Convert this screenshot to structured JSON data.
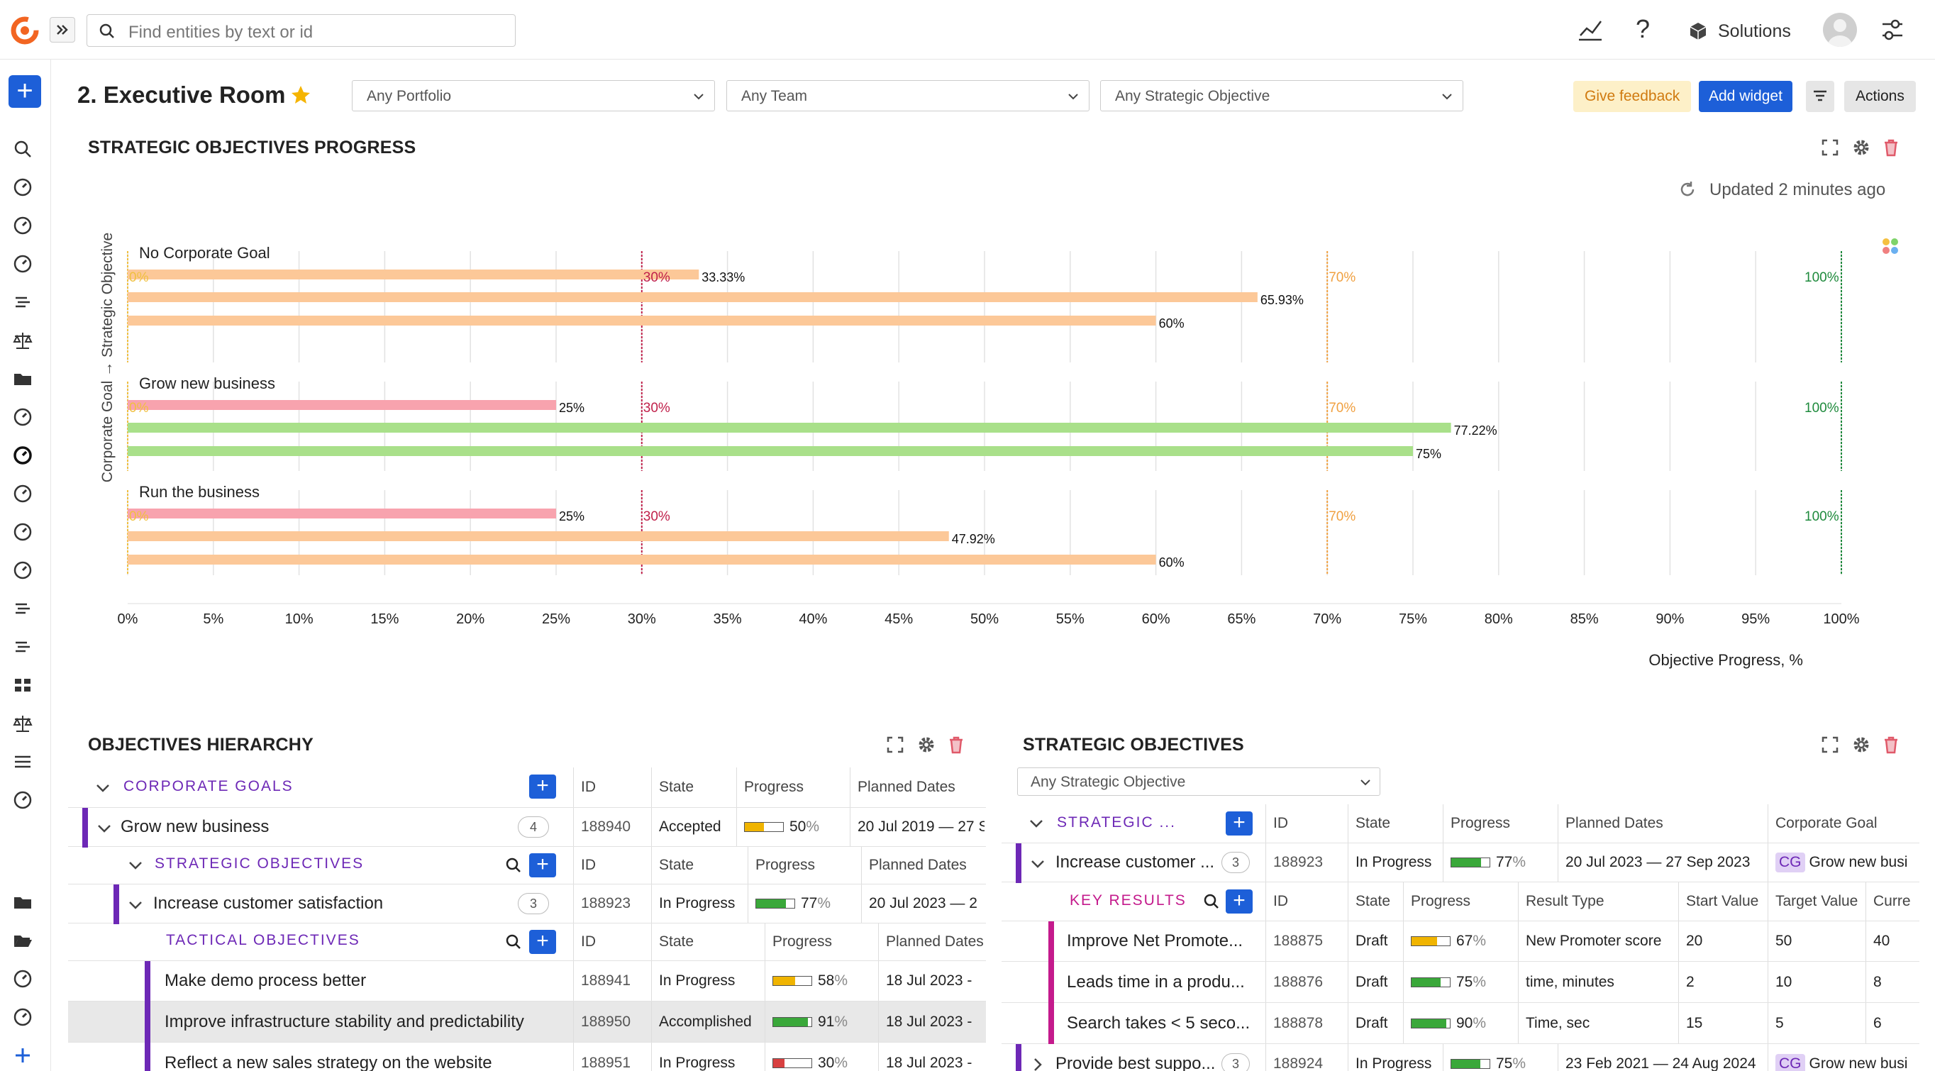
{
  "topbar": {
    "search_placeholder": "Find entities by text or id",
    "solutions_label": "Solutions"
  },
  "header": {
    "title": "2. Executive Room",
    "filters": [
      "Any Portfolio",
      "Any Team",
      "Any Strategic Objective"
    ],
    "feedback_label": "Give feedback",
    "add_widget_label": "Add widget",
    "actions_label": "Actions"
  },
  "progress_widget": {
    "title": "STRATEGIC OBJECTIVES PROGRESS",
    "updated": "Updated 2 minutes ago"
  },
  "chart_data": {
    "type": "bar",
    "orientation": "horizontal",
    "xlabel": "Objective Progress, %",
    "ylabel": "Corporate Goal → Strategic Objective",
    "xlim": [
      0,
      100
    ],
    "xticks": [
      "0%",
      "5%",
      "10%",
      "15%",
      "20%",
      "25%",
      "30%",
      "35%",
      "40%",
      "45%",
      "50%",
      "55%",
      "60%",
      "65%",
      "70%",
      "75%",
      "80%",
      "85%",
      "90%",
      "95%",
      "100%"
    ],
    "thresholds": [
      {
        "value": 0,
        "label": "0%",
        "color": "#f0c040"
      },
      {
        "value": 30,
        "label": "30%",
        "color": "#c0204a"
      },
      {
        "value": 70,
        "label": "70%",
        "color": "#f0a040"
      },
      {
        "value": 100,
        "label": "100%",
        "color": "#1e8a3c"
      }
    ],
    "groups": [
      {
        "name": "No Corporate Goal",
        "values": [
          33.33,
          65.93,
          60
        ],
        "labels": [
          "33.33%",
          "65.93%",
          "60%"
        ],
        "colors": [
          "#fcc898",
          "#fcc898",
          "#fcc898"
        ]
      },
      {
        "name": "Grow new business",
        "values": [
          25,
          77.22,
          75
        ],
        "labels": [
          "25%",
          "77.22%",
          "75%"
        ],
        "colors": [
          "#f8a3ae",
          "#a9e08a",
          "#a9e08a"
        ]
      },
      {
        "name": "Run the business",
        "values": [
          25,
          47.92,
          60
        ],
        "labels": [
          "25%",
          "47.92%",
          "60%"
        ],
        "colors": [
          "#f8a3ae",
          "#fcc898",
          "#fcc898"
        ]
      }
    ]
  },
  "hierarchy": {
    "title": "OBJECTIVES HIERARCHY",
    "corporate_header": "CORPORATE GOALS",
    "col_id": "ID",
    "col_state": "State",
    "col_progress": "Progress",
    "col_dates": "Planned Dates",
    "goal": {
      "name": "Grow new business",
      "count": "4",
      "id": "188940",
      "state": "Accepted",
      "progress": "50",
      "dates": "20 Jul 2019 — 27 S"
    },
    "strategic_header": "STRATEGIC OBJECTIVES",
    "strategic": {
      "name": "Increase customer satisfaction",
      "count": "3",
      "id": "188923",
      "state": "In Progress",
      "progress": "77",
      "dates": "20 Jul 2023 — 2"
    },
    "tactical_header": "TACTICAL OBJECTIVES",
    "tactical": [
      {
        "name": "Make demo process better",
        "id": "188941",
        "state": "In Progress",
        "progress": "58",
        "dates": "18 Jul 2023 -",
        "color": "#f0b400"
      },
      {
        "name": "Improve infrastructure stability and predictability",
        "id": "188950",
        "state": "Accomplished",
        "progress": "91",
        "dates": "18 Jul 2023 -",
        "color": "#3aa83a"
      },
      {
        "name": "Reflect a new sales strategy on the website",
        "id": "188951",
        "state": "In Progress",
        "progress": "30",
        "dates": "18 Jul 2023 -",
        "color": "#d84040"
      }
    ]
  },
  "strategic_widget": {
    "title": "STRATEGIC OBJECTIVES",
    "filter": "Any Strategic Objective",
    "header_label": "STRATEGIC ...",
    "col_id": "ID",
    "col_state": "State",
    "col_progress": "Progress",
    "col_dates": "Planned Dates",
    "col_goal": "Corporate Goal",
    "rows": [
      {
        "name": "Increase customer ...",
        "count": "3",
        "id": "188923",
        "state": "In Progress",
        "progress": "77",
        "dates": "20 Jul 2023 — 27 Sep 2023",
        "goal_tag": "CG",
        "goal": "Grow new busi"
      },
      {
        "name": "Provide best suppo...",
        "count": "3",
        "id": "188924",
        "state": "In Progress",
        "progress": "75",
        "dates": "23 Feb 2021 — 24 Aug 2024",
        "goal_tag": "CG",
        "goal": "Grow new busi"
      }
    ],
    "kr_header": "KEY RESULTS",
    "kr_cols": {
      "id": "ID",
      "state": "State",
      "progress": "Progress",
      "type": "Result Type",
      "start": "Start Value",
      "target": "Target Value",
      "current": "Curre"
    },
    "key_results": [
      {
        "name": "Improve Net Promote...",
        "id": "188875",
        "state": "Draft",
        "progress": "67",
        "type": "New Promoter score",
        "start": "20",
        "target": "50",
        "current": "40",
        "color": "#f0b400"
      },
      {
        "name": "Leads time in a produ...",
        "id": "188876",
        "state": "Draft",
        "progress": "75",
        "type": "time, minutes",
        "start": "2",
        "target": "10",
        "current": "8",
        "color": "#3aa83a"
      },
      {
        "name": "Search takes < 5 seco...",
        "id": "188878",
        "state": "Draft",
        "progress": "90",
        "type": "Time, sec",
        "start": "15",
        "target": "5",
        "current": "6",
        "color": "#3aa83a"
      }
    ]
  }
}
